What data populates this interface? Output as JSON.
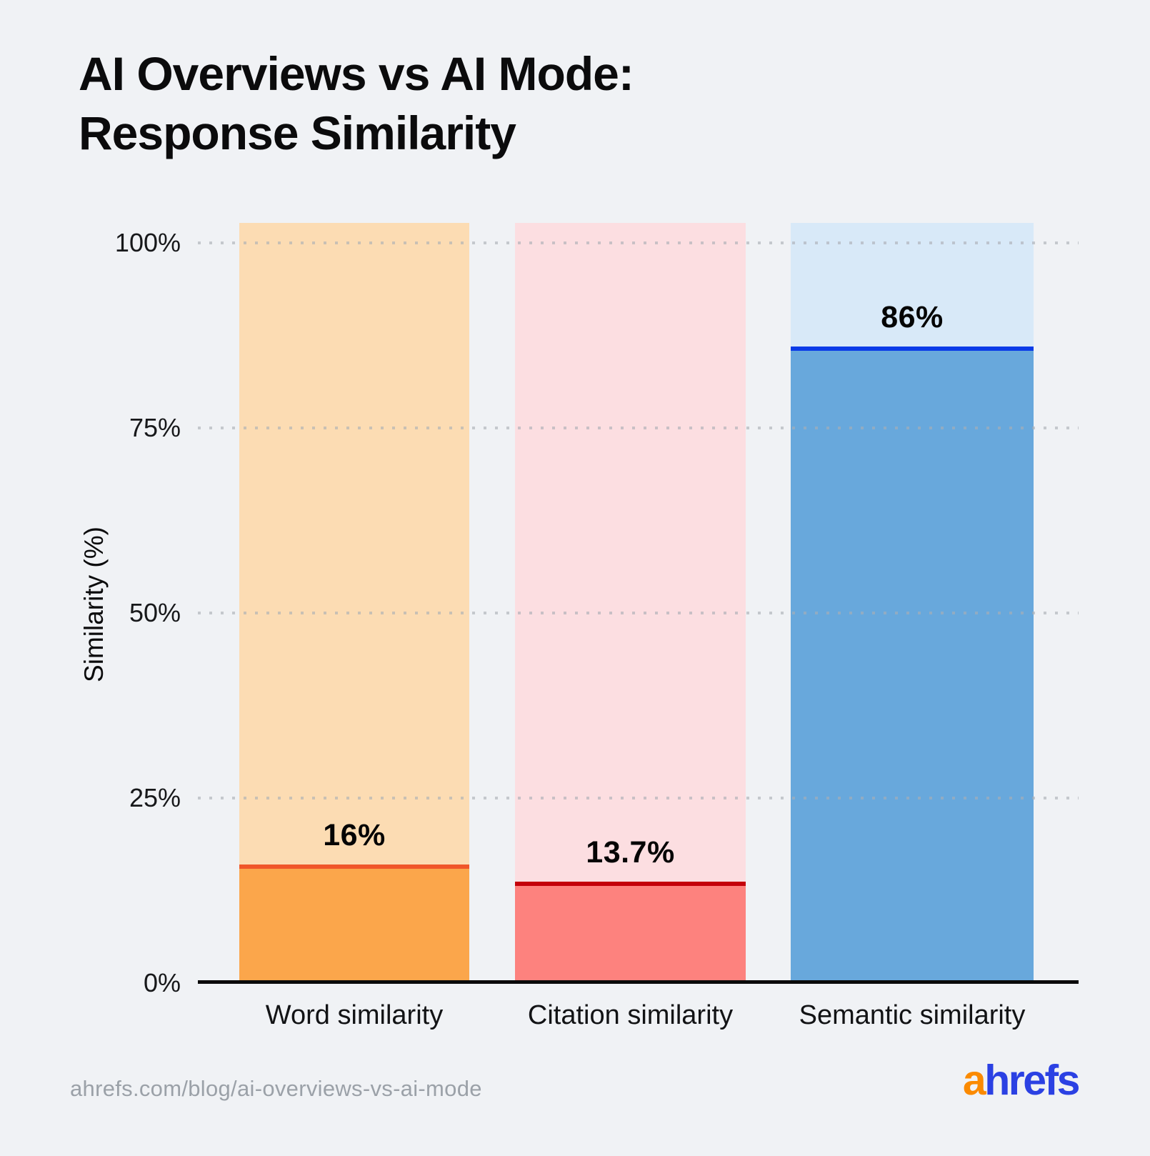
{
  "title": {
    "lines": [
      "AI Overviews vs AI Mode:",
      "Response Similarity"
    ]
  },
  "chart_data": {
    "type": "bar",
    "title": "AI Overviews vs AI Mode: Response Similarity",
    "categories": [
      "Word similarity",
      "Citation similarity",
      "Semantic similarity"
    ],
    "values": [
      16,
      13.7,
      86
    ],
    "value_labels": [
      "16%",
      "13.7%",
      "86%"
    ],
    "xlabel": "",
    "ylabel": "Similarity (%)",
    "ylim": [
      0,
      102.7
    ],
    "yticks": [
      {
        "value": 0,
        "label": "0%"
      },
      {
        "value": 25,
        "label": "25%"
      },
      {
        "value": 50,
        "label": "50%"
      },
      {
        "value": 75,
        "label": "75%"
      },
      {
        "value": 100,
        "label": "100%"
      }
    ],
    "grid": "horizontal-dotted",
    "legend": "none",
    "bars": [
      {
        "category": "Word similarity",
        "value": 16,
        "label": "16%",
        "fill_color": "#FBA64B",
        "top_line_color": "#F0562A",
        "track_color": "#FCDCB3"
      },
      {
        "category": "Citation similarity",
        "value": 13.7,
        "label": "13.7%",
        "fill_color": "#FD827E",
        "top_line_color": "#C4010B",
        "track_color": "#FCDEE1"
      },
      {
        "category": "Semantic similarity",
        "value": 86,
        "label": "86%",
        "fill_color": "#68A8DC",
        "top_line_color": "#0A3BE8",
        "track_color": "#D8E9F8"
      }
    ],
    "track_top_percent": 102.7
  },
  "footer": {
    "source_url": "ahrefs.com/blog/ai-overviews-vs-ai-mode",
    "logo_prefix": "a",
    "logo_suffix": "hrefs"
  },
  "colors": {
    "background": "#F0F2F5",
    "title_text": "#0B0B0C",
    "tick_text": "#17181A",
    "category_text": "#121315",
    "value_text": "#050505",
    "axis_line": "#0A0A0A",
    "grid_dot": "rgba(170,174,180,0.62)",
    "url_text": "#9BA1A8",
    "logo_prefix_color": "#FB8A00",
    "logo_suffix_color": "#2B41E3"
  }
}
